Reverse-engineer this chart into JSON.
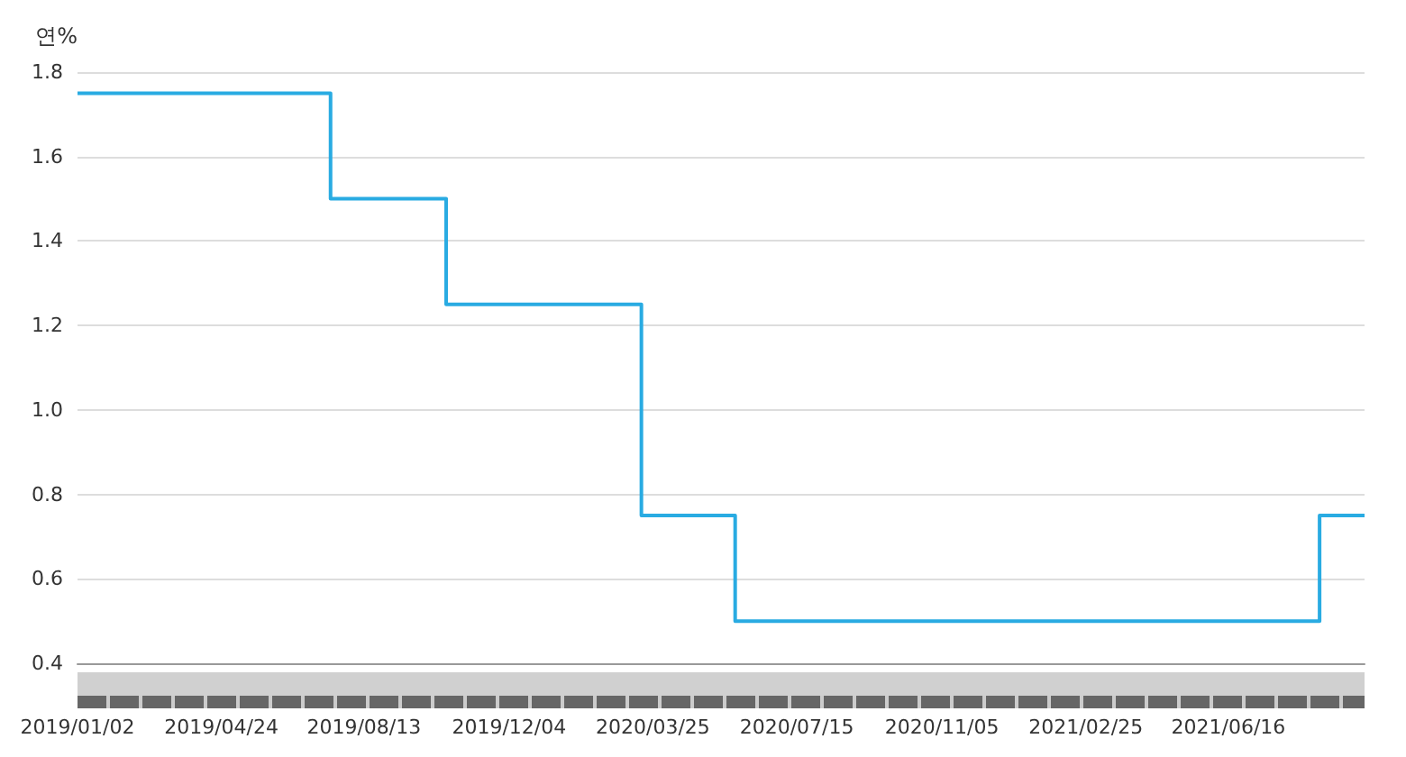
{
  "chart_data": {
    "type": "step",
    "ylabel": "연%",
    "x": [
      "2019-01-02",
      "2019-07-18",
      "2019-10-16",
      "2020-03-16",
      "2020-05-28",
      "2021-08-26",
      "2021-09-30"
    ],
    "values": [
      1.75,
      1.5,
      1.25,
      0.75,
      0.5,
      0.75,
      0.75
    ],
    "color": "#29abe2",
    "xlim": [
      "2019-01-02",
      "2021-09-30"
    ],
    "xticks": [
      {
        "value": "2019-01-02",
        "label": "2019/01/02"
      },
      {
        "value": "2019-04-24",
        "label": "2019/04/24"
      },
      {
        "value": "2019-08-13",
        "label": "2019/08/13"
      },
      {
        "value": "2019-12-04",
        "label": "2019/12/04"
      },
      {
        "value": "2020-03-25",
        "label": "2020/03/25"
      },
      {
        "value": "2020-07-15",
        "label": "2020/07/15"
      },
      {
        "value": "2020-11-05",
        "label": "2020/11/05"
      },
      {
        "value": "2021-02-25",
        "label": "2021/02/25"
      },
      {
        "value": "2021-06-16",
        "label": "2021/06/16"
      }
    ],
    "ylim": [
      0.4,
      1.8
    ],
    "yticks": [
      {
        "value": 0.4,
        "label": "0.4"
      },
      {
        "value": 0.6,
        "label": "0.6"
      },
      {
        "value": 0.8,
        "label": "0.8"
      },
      {
        "value": 1,
        "label": "1.0"
      },
      {
        "value": 1.2,
        "label": "1.2"
      },
      {
        "value": 1.4,
        "label": "1.4"
      },
      {
        "value": 1.6,
        "label": "1.6"
      },
      {
        "value": 1.8,
        "label": "1.8"
      }
    ],
    "grid": "y",
    "marker": "none",
    "line_style": "solid"
  }
}
